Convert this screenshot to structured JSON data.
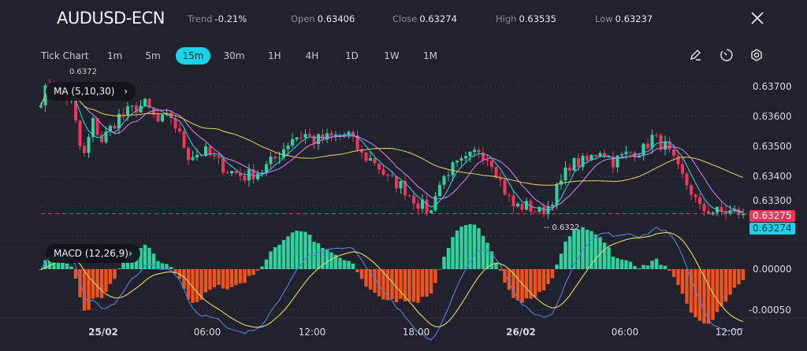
{
  "header": {
    "symbol": "AUDUSD-ECN",
    "trend_label": "Trend",
    "trend_value": "-0.21%",
    "open_label": "Open",
    "open_value": "0.63406",
    "close_label": "Close",
    "close_value": "0.63274",
    "high_label": "High",
    "high_value": "0.63535",
    "low_label": "Low",
    "low_value": "0.63237"
  },
  "toolbar": {
    "tick_chart": "Tick Chart",
    "timeframes": [
      "1m",
      "5m",
      "15m",
      "30m",
      "1H",
      "4H",
      "1D",
      "1W",
      "1M"
    ],
    "active_timeframe": "15m",
    "icons": [
      "pencil-icon",
      "clock-icon",
      "settings-icon"
    ]
  },
  "indicators": {
    "ma_label": "MA",
    "ma_params": "(5,10,30)",
    "macd_label": "MACD",
    "macd_params": "(12,26,9)"
  },
  "price_axis": [
    "0.63700",
    "0.63600",
    "0.63500",
    "0.63400",
    "0.63300"
  ],
  "macd_axis": [
    "0.00000",
    "-0.00050"
  ],
  "time_axis": [
    "25/02",
    "06:00",
    "12:00",
    "18:00",
    "26/02",
    "06:00",
    "12:00"
  ],
  "markers": {
    "high_marker": "0.6372",
    "low_marker": "0.6322",
    "bid_tag": "0.63275",
    "ask_tag": "0.63274"
  },
  "colors": {
    "up": "#2ed3a0",
    "down": "#f0345a",
    "ma5": "#35c4d8",
    "ma10": "#c77ee8",
    "ma30": "#d8c55a",
    "macd_line": "#5b7fe0",
    "signal_line": "#e6d86a",
    "hist_up": "#2ed3a0",
    "hist_down": "#f0541e",
    "accent": "#19d3ea"
  },
  "chart_data": {
    "type": "candlestick",
    "title": "AUDUSD-ECN 15m",
    "interval": "15m",
    "ylim": [
      0.632,
      0.6375
    ],
    "close_anchors": [
      [
        0,
        0.6366
      ],
      [
        2,
        0.6371
      ],
      [
        7,
        0.6365
      ],
      [
        9,
        0.635
      ],
      [
        10,
        0.6347
      ],
      [
        12,
        0.6358
      ],
      [
        14,
        0.6352
      ],
      [
        18,
        0.636
      ],
      [
        22,
        0.6363
      ],
      [
        24,
        0.6364
      ],
      [
        27,
        0.6358
      ],
      [
        30,
        0.636
      ],
      [
        34,
        0.6347
      ],
      [
        38,
        0.6348
      ],
      [
        43,
        0.6342
      ],
      [
        47,
        0.634
      ],
      [
        51,
        0.6342
      ],
      [
        54,
        0.6346
      ],
      [
        58,
        0.6353
      ],
      [
        61,
        0.6354
      ],
      [
        63,
        0.6352
      ],
      [
        67,
        0.6353
      ],
      [
        71,
        0.6354
      ],
      [
        74,
        0.6347
      ],
      [
        77,
        0.6345
      ],
      [
        80,
        0.6339
      ],
      [
        83,
        0.6337
      ],
      [
        87,
        0.6331
      ],
      [
        90,
        0.6328
      ],
      [
        91,
        0.6335
      ],
      [
        94,
        0.6342
      ],
      [
        98,
        0.6345
      ],
      [
        101,
        0.6349
      ],
      [
        104,
        0.6345
      ],
      [
        107,
        0.6335
      ],
      [
        109,
        0.633
      ],
      [
        112,
        0.633
      ],
      [
        115,
        0.6328
      ],
      [
        117,
        0.633
      ],
      [
        120,
        0.6338
      ],
      [
        122,
        0.6344
      ],
      [
        126,
        0.6345
      ],
      [
        129,
        0.6349
      ],
      [
        132,
        0.6345
      ],
      [
        136,
        0.6348
      ],
      [
        139,
        0.6349
      ],
      [
        141,
        0.6353
      ],
      [
        144,
        0.635
      ],
      [
        147,
        0.6342
      ],
      [
        150,
        0.6335
      ],
      [
        152,
        0.6329
      ],
      [
        156,
        0.6328
      ],
      [
        160,
        0.6328
      ],
      [
        162,
        0.63275
      ]
    ],
    "moving_averages": [
      5,
      10,
      30
    ],
    "macd_params": [
      12,
      26,
      9
    ],
    "macd_ylim": [
      -0.0006,
      0.0004
    ]
  }
}
